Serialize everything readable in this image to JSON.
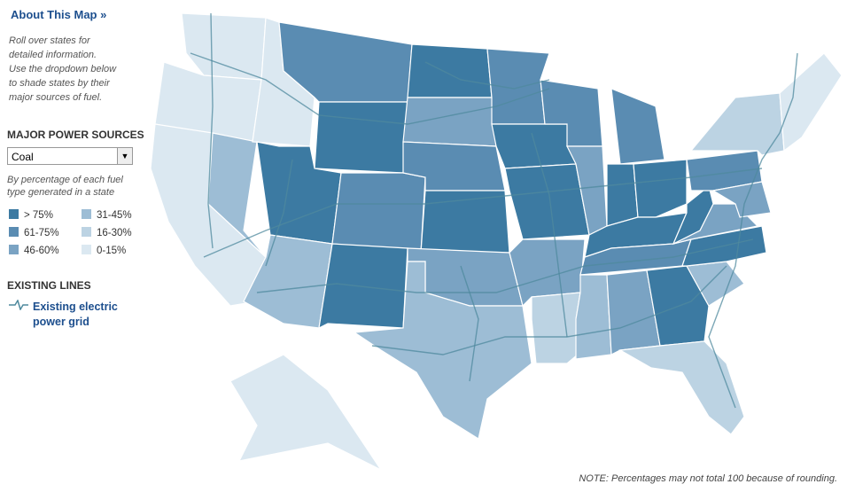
{
  "sidebar": {
    "link": "About This Map »",
    "intro": [
      "Roll over states for",
      "detailed information.",
      "Use the dropdown below",
      "to shade states by their",
      "major sources of fuel."
    ],
    "sources_title": "MAJOR POWER SOURCES",
    "dropdown": "Coal",
    "description": [
      "By  percentage of each fuel",
      "type generated in a state"
    ],
    "legend": [
      {
        "label": "> 75%",
        "color": "#3c7aa2"
      },
      {
        "label": "61-75%",
        "color": "#5a8cb2"
      },
      {
        "label": "46-60%",
        "color": "#7aa3c3"
      },
      {
        "label": "31-45%",
        "color": "#9dbdd5"
      },
      {
        "label": "16-30%",
        "color": "#bcd3e3"
      },
      {
        "label": "0-15%",
        "color": "#dbe8f1"
      }
    ],
    "lines_title": "EXISTING LINES",
    "lines_label": [
      "Existing electric",
      "power grid"
    ]
  },
  "note": "NOTE: Percentages may not total 100 because of rounding."
}
